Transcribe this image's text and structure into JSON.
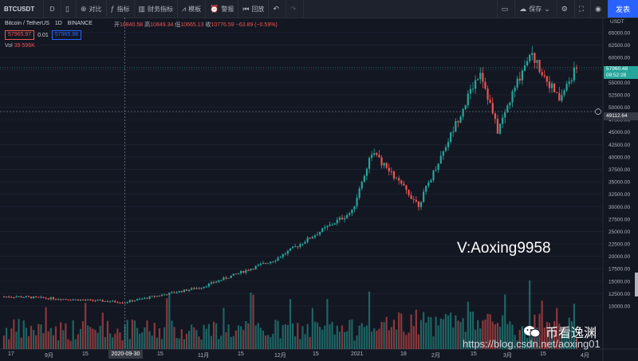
{
  "toolbar": {
    "symbol": "BTCUSDT",
    "interval": "D",
    "compare": "对比",
    "indicators": "指标",
    "financials": "财务指标",
    "templates": "模板",
    "alert": "警报",
    "replay": "回放",
    "save": "保存",
    "publish": "发表"
  },
  "legend": {
    "title": "Bitcoin / TetherUS",
    "interval": "1D",
    "exchange": "BINANCE",
    "open_label": "开",
    "open": "10840.58",
    "high_label": "高",
    "high": "10849.34",
    "low_label": "低",
    "low": "10665.13",
    "close_label": "收",
    "close": "10776.59",
    "change": "−63.89 (−0.59%)",
    "bid": "57965.97",
    "spread": "0.01",
    "ask": "57965.98",
    "vol_label": "Vol",
    "vol_value": "39.596K"
  },
  "price_axis": {
    "currency": "USDT",
    "ticks": [
      "65000.00",
      "62500.00",
      "60000.00",
      "57500.00",
      "55000.00",
      "52500.00",
      "50000.00",
      "47500.00",
      "45000.00",
      "42500.00",
      "40000.00",
      "37500.00",
      "35000.00",
      "32500.00",
      "30000.00",
      "27500.00",
      "25000.00",
      "22500.00",
      "20000.00",
      "17500.00",
      "15000.00",
      "12500.00",
      "10000.00"
    ],
    "last_price": "57960.48",
    "countdown": "09:52:28",
    "crosshair_price": "49112.64"
  },
  "time_axis": {
    "labels": [
      "17",
      "9月",
      "15",
      "2020-09-30",
      "15",
      "11月",
      "15",
      "12月",
      "15",
      "2021",
      "18",
      "2月",
      "15",
      "3月",
      "15",
      "4月"
    ]
  },
  "watermark": "V:Aoxing9958",
  "footer_watermark": "https://blog.csdn.net/aoxing01",
  "wechat_name": "币看逸渊",
  "chart_data": {
    "type": "candlestick",
    "symbol": "BTCUSDT",
    "ylim": [
      10000,
      65000
    ],
    "key_points": [
      {
        "date": "2020-08-17",
        "close": 11900
      },
      {
        "date": "2020-09-30",
        "close": 10777
      },
      {
        "date": "2020-10-31",
        "close": 13800
      },
      {
        "date": "2020-11-30",
        "close": 19400
      },
      {
        "date": "2020-12-31",
        "close": 29000
      },
      {
        "date": "2021-01-08",
        "close": 41000
      },
      {
        "date": "2021-01-27",
        "close": 30400
      },
      {
        "date": "2021-02-21",
        "close": 57500
      },
      {
        "date": "2021-02-28",
        "close": 45200
      },
      {
        "date": "2021-03-13",
        "close": 61200
      },
      {
        "date": "2021-03-25",
        "close": 51500
      },
      {
        "date": "2021-04-01",
        "close": 57960
      }
    ]
  }
}
